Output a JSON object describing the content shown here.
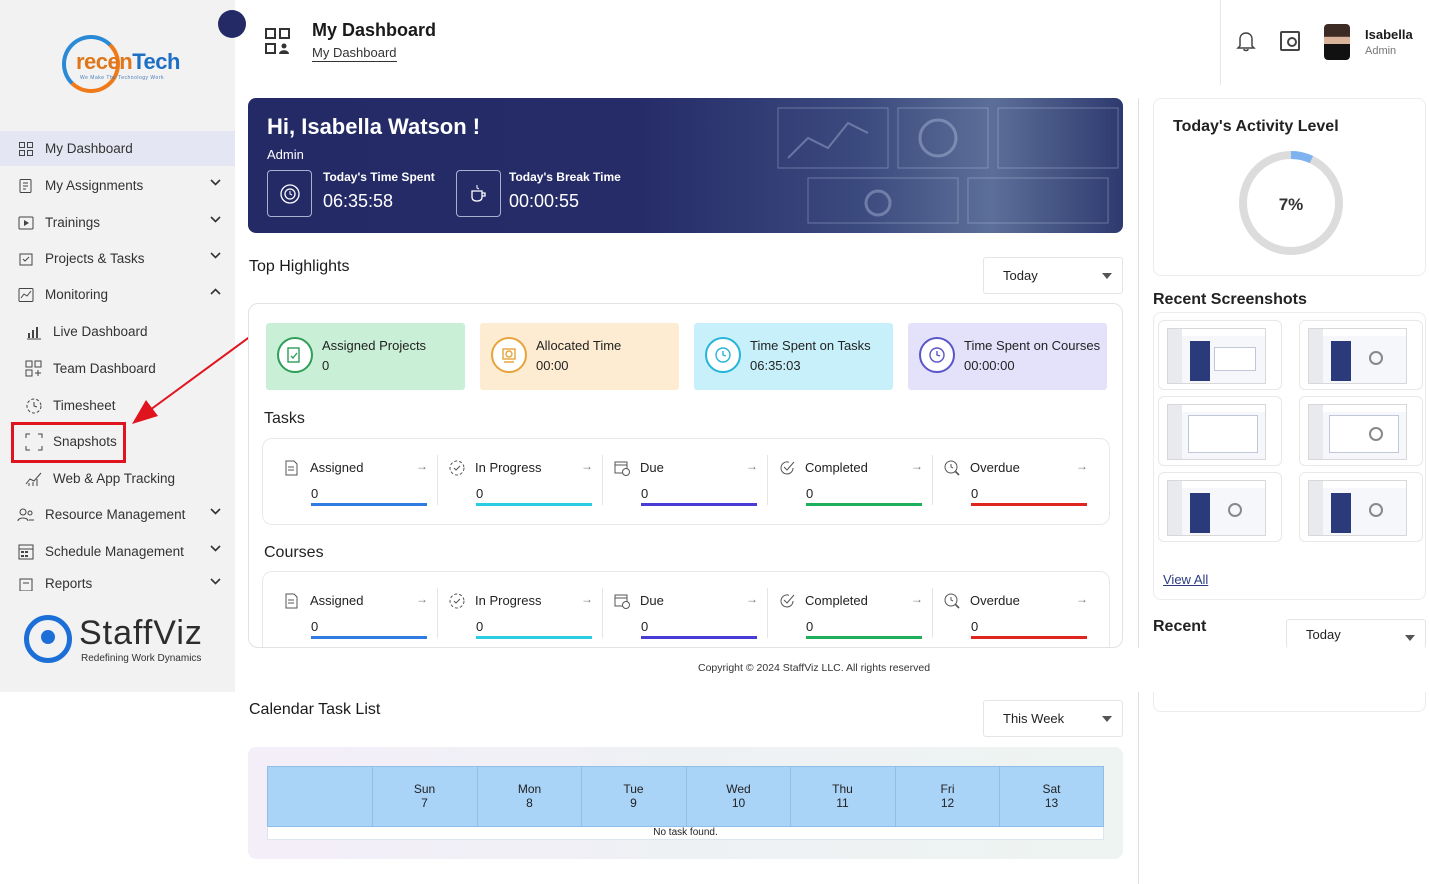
{
  "sidebar": {
    "brand_word_1": "recen",
    "brand_word_2": "Tech",
    "brand_tagline": "We Make The Technology Work",
    "items": [
      {
        "label": "My Dashboard",
        "icon": "grid-icon"
      },
      {
        "label": "My Assignments",
        "icon": "clipboard-icon"
      },
      {
        "label": "Trainings",
        "icon": "play-icon"
      },
      {
        "label": "Projects & Tasks",
        "icon": "tasks-icon"
      },
      {
        "label": "Monitoring",
        "icon": "monitor-chart-icon"
      },
      {
        "label": "Live Dashboard",
        "icon": "bar-chart-icon"
      },
      {
        "label": "Team Dashboard",
        "icon": "team-grid-icon"
      },
      {
        "label": "Timesheet",
        "icon": "clock-icon"
      },
      {
        "label": "Snapshots",
        "icon": "frame-icon"
      },
      {
        "label": "Web & App Tracking",
        "icon": "line-chart-icon"
      },
      {
        "label": "Resource Management",
        "icon": "users-icon"
      },
      {
        "label": "Schedule Management",
        "icon": "schedule-icon"
      },
      {
        "label": "Reports",
        "icon": "report-icon"
      }
    ],
    "footer_brand": "StaffViz",
    "footer_tagline": "Redefining Work Dynamics"
  },
  "header": {
    "title": "My Dashboard",
    "breadcrumb": "My Dashboard",
    "user_name": "Isabella",
    "user_role": "Admin"
  },
  "banner": {
    "greeting": "Hi, Isabella Watson !",
    "role": "Admin",
    "time_spent_label": "Today's Time Spent",
    "time_spent_value": "06:35:58",
    "break_label": "Today's Break Time",
    "break_value": "00:00:55"
  },
  "highlights": {
    "title": "Top Highlights",
    "filter": "Today",
    "tiles": [
      {
        "label": "Assigned Projects",
        "value": "0",
        "bg": "#c9efd6",
        "color": "#2e9e5a"
      },
      {
        "label": "Allocated Time",
        "value": "00:00",
        "bg": "#fdecd2",
        "color": "#e8a33a"
      },
      {
        "label": "Time Spent on Tasks",
        "value": "06:35:03",
        "bg": "#c7f0fa",
        "color": "#25b4d8"
      },
      {
        "label": "Time Spent on Courses",
        "value": "00:00:00",
        "bg": "#e3e2fa",
        "color": "#5a55c8"
      }
    ]
  },
  "tasks": {
    "title": "Tasks",
    "stats": [
      {
        "label": "Assigned",
        "value": "0",
        "color": "#2f7be0"
      },
      {
        "label": "In Progress",
        "value": "0",
        "color": "#2ccde0"
      },
      {
        "label": "Due",
        "value": "0",
        "color": "#4a3ad6"
      },
      {
        "label": "Completed",
        "value": "0",
        "color": "#1fae5a"
      },
      {
        "label": "Overdue",
        "value": "0",
        "color": "#e0251e"
      }
    ]
  },
  "courses": {
    "title": "Courses",
    "stats": [
      {
        "label": "Assigned",
        "value": "0",
        "color": "#2f7be0"
      },
      {
        "label": "In Progress",
        "value": "0",
        "color": "#2ccde0"
      },
      {
        "label": "Due",
        "value": "0",
        "color": "#4a3ad6"
      },
      {
        "label": "Completed",
        "value": "0",
        "color": "#1fae5a"
      },
      {
        "label": "Overdue",
        "value": "0",
        "color": "#e0251e"
      }
    ]
  },
  "copyright": "Copyright © 2024 StaffViz LLC. All rights reserved",
  "calendar": {
    "title": "Calendar Task List",
    "filter": "This Week",
    "days": [
      {
        "name": "Sun",
        "date": "7"
      },
      {
        "name": "Mon",
        "date": "8"
      },
      {
        "name": "Tue",
        "date": "9"
      },
      {
        "name": "Wed",
        "date": "10"
      },
      {
        "name": "Thu",
        "date": "11"
      },
      {
        "name": "Fri",
        "date": "12"
      },
      {
        "name": "Sat",
        "date": "13"
      }
    ],
    "empty": "No task found."
  },
  "activity": {
    "title": "Today's Activity Level",
    "value": "7%",
    "percent": 7
  },
  "screenshots": {
    "title": "Recent Screenshots",
    "view_all": "View All"
  },
  "recent_activities": {
    "title": "Recent",
    "filter": "Today"
  }
}
